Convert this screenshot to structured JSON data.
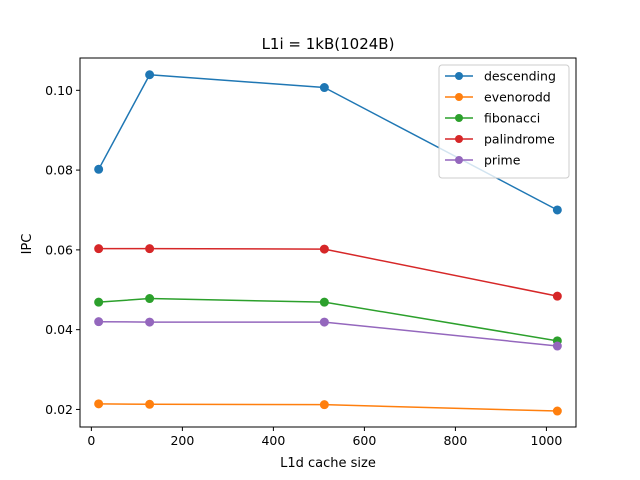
{
  "chart_data": {
    "type": "line",
    "title": "L1i = 1kB(1024B)",
    "xlabel": "L1d cache size",
    "ylabel": "IPC",
    "x": [
      16,
      128,
      512,
      1024
    ],
    "xlim": [
      -25,
      1065
    ],
    "ylim": [
      0.0156,
      0.1081
    ],
    "xticks": [
      0,
      200,
      400,
      600,
      800,
      1000
    ],
    "xtick_labels": [
      "0",
      "200",
      "400",
      "600",
      "800",
      "1000"
    ],
    "yticks": [
      0.02,
      0.04,
      0.06,
      0.08,
      0.1
    ],
    "ytick_labels": [
      "0.02",
      "0.04",
      "0.06",
      "0.08",
      "0.10"
    ],
    "grid": false,
    "legend_position": "top-right",
    "marker": "circle",
    "series": [
      {
        "name": "descending",
        "color": "#1f77b4",
        "values": [
          0.0802,
          0.1039,
          0.1007,
          0.07
        ]
      },
      {
        "name": "evenorodd",
        "color": "#ff7f0e",
        "values": [
          0.0214,
          0.0213,
          0.0212,
          0.0196
        ]
      },
      {
        "name": "fibonacci",
        "color": "#2ca02c",
        "values": [
          0.0469,
          0.0478,
          0.0469,
          0.0372
        ]
      },
      {
        "name": "palindrome",
        "color": "#d62728",
        "values": [
          0.0603,
          0.0603,
          0.0602,
          0.0484
        ]
      },
      {
        "name": "prime",
        "color": "#9467bd",
        "values": [
          0.042,
          0.0419,
          0.0419,
          0.0359
        ]
      }
    ]
  }
}
